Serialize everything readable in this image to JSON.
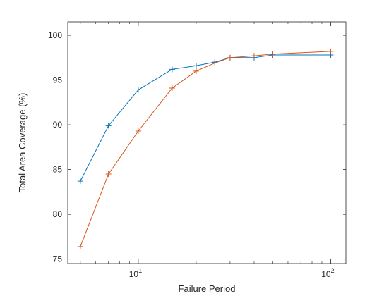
{
  "chart_data": {
    "type": "line",
    "xlabel": "Failure Period",
    "ylabel": "Total Area Coverage (%)",
    "xscale": "log",
    "xlim": [
      4.3,
      120
    ],
    "ylim": [
      74.5,
      101.5
    ],
    "x_ticks": [
      {
        "base": "10",
        "exp": "1",
        "value": 10
      },
      {
        "base": "10",
        "exp": "2",
        "value": 100
      }
    ],
    "y_ticks": [
      "75",
      "80",
      "85",
      "90",
      "95",
      "100"
    ],
    "grid": false,
    "series": [
      {
        "color": "#0072BD",
        "marker": "plus",
        "x": [
          5,
          7,
          10,
          15,
          20,
          25,
          30,
          40,
          50,
          100
        ],
        "y": [
          83.7,
          89.9,
          93.9,
          96.2,
          96.6,
          97.0,
          97.5,
          97.5,
          97.8,
          97.8
        ]
      },
      {
        "color": "#D95319",
        "marker": "plus",
        "x": [
          5,
          7,
          10,
          15,
          20,
          25,
          30,
          40,
          50,
          100
        ],
        "y": [
          76.4,
          84.5,
          89.3,
          94.1,
          96.0,
          96.9,
          97.5,
          97.7,
          97.9,
          98.2
        ]
      }
    ]
  }
}
